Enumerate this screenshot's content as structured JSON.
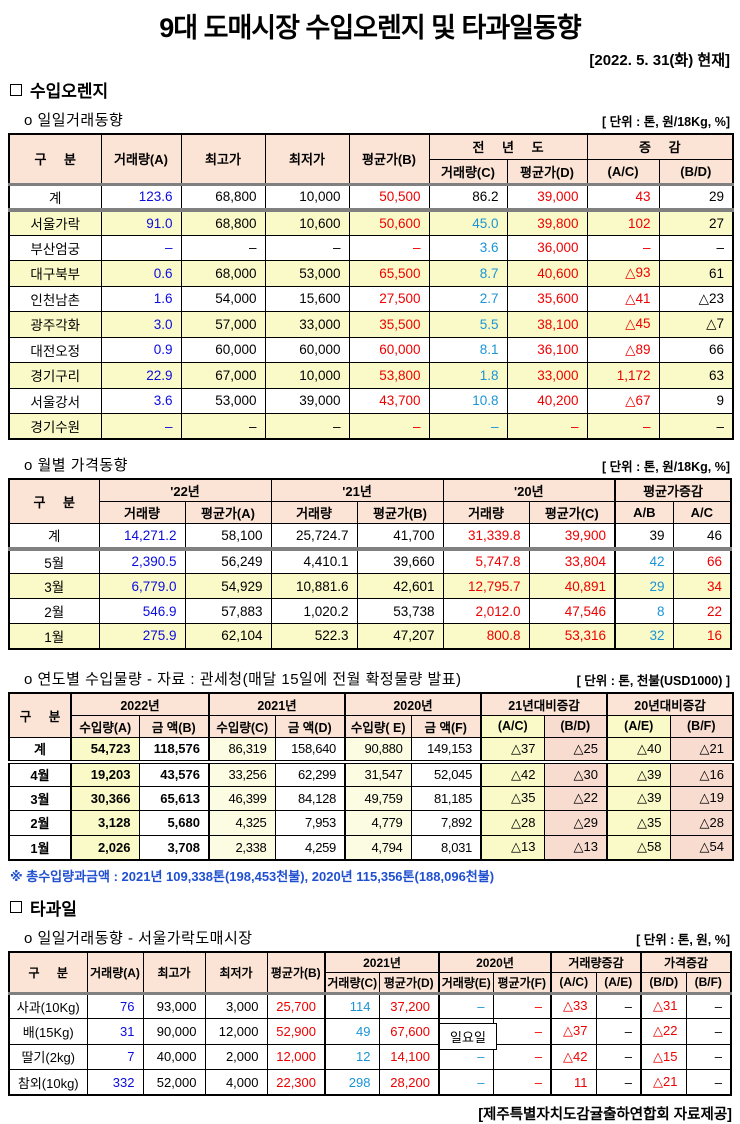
{
  "page": {
    "title": "9대 도매시장 수입오렌지 및 타과일동향",
    "date_note": "[2022. 5. 31(화) 현재]",
    "footer": "[제주특별자치도감귤출하연합회 자료제공]"
  },
  "sections": {
    "orange": "수입오렌지",
    "fruit": "타과일"
  },
  "orange_daily": {
    "subtitle": "o 일일거래동향",
    "unit": "[ 단위 : 톤, 원/18Kg, %]",
    "h": {
      "gubun": "구 분",
      "qty_a": "거래량(A)",
      "high": "최고가",
      "low": "최저가",
      "avg_b": "평균가(B)",
      "prev_year": "전 년 도",
      "qty_c": "거래량(C)",
      "avg_d": "평균가(D)",
      "change": "증 감",
      "ac": "(A/C)",
      "bd": "(B/D)"
    },
    "rows": [
      [
        "계",
        "123.6",
        "68,800",
        "10,000",
        "50,500",
        "86.2",
        "39,000",
        "43",
        "29"
      ],
      [
        "서울가락",
        "91.0",
        "68,800",
        "10,600",
        "50,600",
        "45.0",
        "39,800",
        "102",
        "27"
      ],
      [
        "부산엄궁",
        "–",
        "–",
        "–",
        "–",
        "3.6",
        "36,000",
        "–",
        "–"
      ],
      [
        "대구북부",
        "0.6",
        "68,000",
        "53,000",
        "65,500",
        "8.7",
        "40,600",
        "△93",
        "61"
      ],
      [
        "인천남촌",
        "1.6",
        "54,000",
        "15,600",
        "27,500",
        "2.7",
        "35,600",
        "△41",
        "△23"
      ],
      [
        "광주각화",
        "3.0",
        "57,000",
        "33,000",
        "35,500",
        "5.5",
        "38,100",
        "△45",
        "△7"
      ],
      [
        "대전오정",
        "0.9",
        "60,000",
        "60,000",
        "60,000",
        "8.1",
        "36,100",
        "△89",
        "66"
      ],
      [
        "경기구리",
        "22.9",
        "67,000",
        "10,000",
        "53,800",
        "1.8",
        "33,000",
        "1,172",
        "63"
      ],
      [
        "서울강서",
        "3.6",
        "53,000",
        "39,000",
        "43,700",
        "10.8",
        "40,200",
        "△67",
        "9"
      ],
      [
        "경기수원",
        "–",
        "–",
        "–",
        "–",
        "–",
        "–",
        "–",
        "–"
      ]
    ]
  },
  "orange_monthly": {
    "subtitle": "o 월별 가격동향",
    "unit": "[ 단위 : 톤, 원/18Kg, %]",
    "h": {
      "gubun": "구 분",
      "y22": "'22년",
      "y21": "'21년",
      "y20": "'20년",
      "qty": "거래량",
      "avg_a": "평균가(A)",
      "avg_b": "평균가(B)",
      "avg_c": "평균가(C)",
      "chg": "평균가증감",
      "ab": "A/B",
      "ac": "A/C"
    },
    "rows": [
      [
        "계",
        "14,271.2",
        "58,100",
        "25,724.7",
        "41,700",
        "31,339.8",
        "39,900",
        "39",
        "46"
      ],
      [
        "5월",
        "2,390.5",
        "56,249",
        "4,410.1",
        "39,660",
        "5,747.8",
        "33,804",
        "42",
        "66"
      ],
      [
        "3월",
        "6,779.0",
        "54,929",
        "10,881.6",
        "42,601",
        "12,795.7",
        "40,891",
        "29",
        "34"
      ],
      [
        "2월",
        "546.9",
        "57,883",
        "1,020.2",
        "53,738",
        "2,012.0",
        "47,546",
        "8",
        "22"
      ],
      [
        "1월",
        "275.9",
        "62,104",
        "522.3",
        "47,207",
        "800.8",
        "53,316",
        "32",
        "16"
      ]
    ]
  },
  "orange_yearly": {
    "subtitle": "o 연도별 수입물량 - 자료 : 관세청(매달 15일에 전월 확정물량 발표)",
    "unit": "[ 단위 : 톤, 천불(USD1000) ]",
    "h": {
      "gubun": "구 분",
      "y2022": "2022년",
      "y2021": "2021년",
      "y2020": "2020년",
      "qty_a": "수입량(A)",
      "amt_b": "금 액(B)",
      "qty_c": "수입량(C)",
      "amt_d": "금 액(D)",
      "qty_e": "수입량( E)",
      "amt_f": "금 액(F)",
      "chg21": "21년대비증감",
      "chg20": "20년대비증감",
      "ac": "(A/C)",
      "bd": "(B/D)",
      "ae": "(A/E)",
      "bf": "(B/F)"
    },
    "rows": [
      [
        "계",
        "54,723",
        "118,576",
        "86,319",
        "158,640",
        "90,880",
        "149,153",
        "△37",
        "△25",
        "△40",
        "△21"
      ],
      [
        "4월",
        "19,203",
        "43,576",
        "33,256",
        "62,299",
        "31,547",
        "52,045",
        "△42",
        "△30",
        "△39",
        "△16"
      ],
      [
        "3월",
        "30,366",
        "65,613",
        "46,399",
        "84,128",
        "49,759",
        "81,185",
        "△35",
        "△22",
        "△39",
        "△19"
      ],
      [
        "2월",
        "3,128",
        "5,680",
        "4,325",
        "7,953",
        "4,779",
        "7,892",
        "△28",
        "△29",
        "△35",
        "△28"
      ],
      [
        "1월",
        "2,026",
        "3,708",
        "2,338",
        "4,259",
        "4,794",
        "8,031",
        "△13",
        "△13",
        "△58",
        "△54"
      ]
    ],
    "footnote": "※ 총수입량과금액 : 2021년 109,338톤(198,453천불),  2020년 115,356톤(188,096천불)"
  },
  "fruit_daily": {
    "subtitle": "o 일일거래동향 - 서울가락도매시장",
    "unit": "[ 단위 : 톤, 원, %]",
    "h": {
      "gubun": "구 분",
      "qty_a": "거래량(A)",
      "high": "최고가",
      "low": "최저가",
      "avg_b": "평균가(B)",
      "y2021": "2021년",
      "y2020": "2020년",
      "qty_c": "거래량(C)",
      "avg_d": "평균가(D)",
      "qty_e": "거래량(E)",
      "avg_f": "평균가(F)",
      "qty_chg": "거래량증감",
      "price_chg": "가격증감",
      "ac": "(A/C)",
      "ae": "(A/E)",
      "bd": "(B/D)",
      "bf": "(B/F)"
    },
    "overlay": "일요일",
    "rows": [
      [
        "사과(10Kg)",
        "76",
        "93,000",
        "3,000",
        "25,700",
        "114",
        "37,200",
        "–",
        "–",
        "△33",
        "–",
        "△31",
        "–"
      ],
      [
        "배(15Kg)",
        "31",
        "90,000",
        "12,000",
        "52,900",
        "49",
        "67,600",
        "",
        "–",
        "△37",
        "–",
        "△22",
        "–"
      ],
      [
        "딸기(2kg)",
        "7",
        "40,000",
        "2,000",
        "12,000",
        "12",
        "14,100",
        "–",
        "–",
        "△42",
        "–",
        "△15",
        "–"
      ],
      [
        "참외(10kg)",
        "332",
        "52,000",
        "4,000",
        "22,300",
        "298",
        "28,200",
        "–",
        "–",
        "11",
        "–",
        "△21",
        "–"
      ]
    ]
  },
  "colors": {
    "header_bg": "#FBE4D5",
    "row_yellow": "#FAFAC8",
    "col_pale_yellow": "#FCFCE2",
    "col_pink": "#F8DCD0",
    "current_qty_blue": "#0B0BDE",
    "prev_qty_blue": "#1B94D6",
    "price_red": "#EE0000",
    "footnote_blue": "#2050D0"
  }
}
